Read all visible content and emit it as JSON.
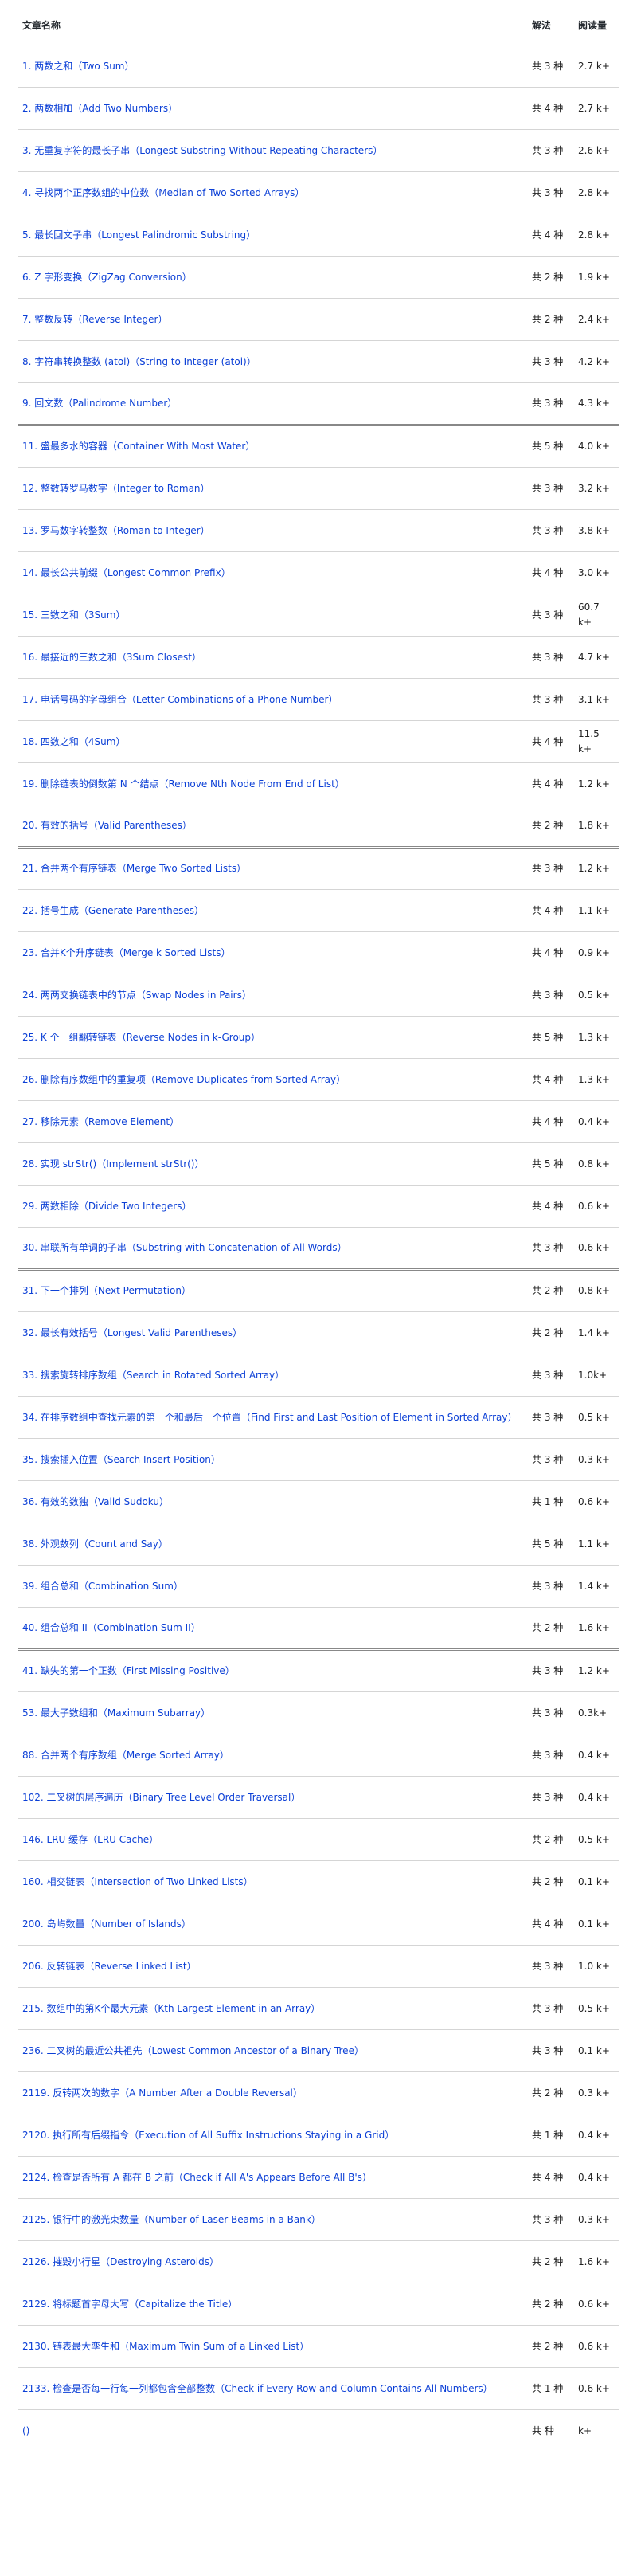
{
  "header": {
    "title": "文章名称",
    "solutions": "解法",
    "reads": "阅读量"
  },
  "rows": [
    {
      "title": "1. 两数之和（Two Sum）",
      "solutions": "共 3 种",
      "reads": "2.7 k+"
    },
    {
      "title": "2. 两数相加（Add Two Numbers）",
      "solutions": "共 4 种",
      "reads": "2.7 k+"
    },
    {
      "title": "3. 无重复字符的最长子串（Longest Substring Without Repeating Characters）",
      "solutions": "共 3 种",
      "reads": "2.6 k+"
    },
    {
      "title": "4. 寻找两个正序数组的中位数（Median of Two Sorted Arrays）",
      "solutions": "共 3 种",
      "reads": "2.8 k+"
    },
    {
      "title": "5. 最长回文子串（Longest Palindromic Substring）",
      "solutions": "共 4 种",
      "reads": "2.8 k+"
    },
    {
      "title": "6. Z 字形变换（ZigZag Conversion）",
      "solutions": "共 2 种",
      "reads": "1.9 k+"
    },
    {
      "title": "7. 整数反转（Reverse Integer）",
      "solutions": "共 2 种",
      "reads": "2.4 k+"
    },
    {
      "title": "8. 字符串转换整数 (atoi)（String to Integer (atoi)）",
      "solutions": "共 3 种",
      "reads": "4.2 k+"
    },
    {
      "title": "9. 回文数（Palindrome Number）",
      "solutions": "共 3 种",
      "reads": "4.3 k+"
    },
    {
      "title": "11. 盛最多水的容器（Container With Most Water）",
      "solutions": "共 5 种",
      "reads": "4.0 k+"
    },
    {
      "title": "12. 整数转罗马数字（Integer to Roman）",
      "solutions": "共 3 种",
      "reads": "3.2 k+"
    },
    {
      "title": "13. 罗马数字转整数（Roman to Integer）",
      "solutions": "共 3 种",
      "reads": "3.8 k+"
    },
    {
      "title": "14. 最长公共前缀（Longest Common Prefix）",
      "solutions": "共 4 种",
      "reads": "3.0 k+"
    },
    {
      "title": "15. 三数之和（3Sum）",
      "solutions": "共 3 种",
      "reads": "60.7 k+"
    },
    {
      "title": "16. 最接近的三数之和（3Sum Closest）",
      "solutions": "共 3 种",
      "reads": "4.7 k+"
    },
    {
      "title": "17. 电话号码的字母组合（Letter Combinations of a Phone Number）",
      "solutions": "共 3 种",
      "reads": "3.1 k+"
    },
    {
      "title": "18. 四数之和（4Sum）",
      "solutions": "共 4 种",
      "reads": "11.5 k+"
    },
    {
      "title": "19. 删除链表的倒数第 N 个结点（Remove Nth Node From End of List）",
      "solutions": "共 4 种",
      "reads": "1.2 k+"
    },
    {
      "title": "20. 有效的括号（Valid Parentheses）",
      "solutions": "共 2 种",
      "reads": "1.8 k+"
    },
    {
      "title": "21. 合并两个有序链表（Merge Two Sorted Lists）",
      "solutions": "共 3 种",
      "reads": "1.2 k+"
    },
    {
      "title": "22. 括号生成（Generate Parentheses）",
      "solutions": "共 4 种",
      "reads": "1.1 k+"
    },
    {
      "title": "23. 合并K个升序链表（Merge k Sorted Lists）",
      "solutions": "共 4 种",
      "reads": "0.9 k+"
    },
    {
      "title": "24. 两两交换链表中的节点（Swap Nodes in Pairs）",
      "solutions": "共 3 种",
      "reads": "0.5 k+"
    },
    {
      "title": "25. K 个一组翻转链表（Reverse Nodes in k-Group）",
      "solutions": "共 5 种",
      "reads": "1.3 k+"
    },
    {
      "title": "26. 删除有序数组中的重复项（Remove Duplicates from Sorted Array）",
      "solutions": "共 4 种",
      "reads": "1.3 k+"
    },
    {
      "title": "27. 移除元素（Remove Element）",
      "solutions": "共 4 种",
      "reads": "0.4 k+"
    },
    {
      "title": "28. 实现 strStr()（Implement strStr()）",
      "solutions": "共 5 种",
      "reads": "0.8 k+"
    },
    {
      "title": "29. 两数相除（Divide Two Integers）",
      "solutions": "共 4 种",
      "reads": "0.6 k+"
    },
    {
      "title": "30. 串联所有单词的子串（Substring with Concatenation of All Words）",
      "solutions": "共 3 种",
      "reads": "0.6 k+"
    },
    {
      "title": "31. 下一个排列（Next Permutation）",
      "solutions": "共 2 种",
      "reads": "0.8 k+"
    },
    {
      "title": "32. 最长有效括号（Longest Valid Parentheses）",
      "solutions": "共 2 种",
      "reads": "1.4 k+"
    },
    {
      "title": "33. 搜索旋转排序数组（Search in Rotated Sorted Array）",
      "solutions": "共 3 种",
      "reads": "1.0k+"
    },
    {
      "title": "34. 在排序数组中查找元素的第一个和最后一个位置（Find First and Last Position of Element in Sorted Array）",
      "solutions": "共 3 种",
      "reads": "0.5 k+"
    },
    {
      "title": "35. 搜索插入位置（Search Insert Position）",
      "solutions": "共 3 种",
      "reads": "0.3 k+"
    },
    {
      "title": "36. 有效的数独（Valid Sudoku）",
      "solutions": "共 1 种",
      "reads": "0.6 k+"
    },
    {
      "title": "38. 外观数列（Count and Say）",
      "solutions": "共 5 种",
      "reads": "1.1 k+"
    },
    {
      "title": "39. 组合总和（Combination Sum）",
      "solutions": "共 3 种",
      "reads": "1.4 k+"
    },
    {
      "title": "40. 组合总和 II（Combination Sum II）",
      "solutions": "共 2 种",
      "reads": "1.6 k+"
    },
    {
      "title": "41. 缺失的第一个正数（First Missing Positive）",
      "solutions": "共 3 种",
      "reads": "1.2 k+"
    },
    {
      "title": "53. 最大子数组和（Maximum Subarray）",
      "solutions": "共 3 种",
      "reads": "0.3k+"
    },
    {
      "title": "88. 合并两个有序数组（Merge Sorted Array）",
      "solutions": "共 3 种",
      "reads": "0.4 k+"
    },
    {
      "title": "102. 二叉树的层序遍历（Binary Tree Level Order Traversal）",
      "solutions": "共 3 种",
      "reads": "0.4 k+"
    },
    {
      "title": "146. LRU 缓存（LRU Cache）",
      "solutions": "共 2 种",
      "reads": "0.5 k+"
    },
    {
      "title": "160. 相交链表（Intersection of Two Linked Lists）",
      "solutions": "共 2 种",
      "reads": "0.1 k+"
    },
    {
      "title": "200. 岛屿数量（Number of Islands）",
      "solutions": "共 4 种",
      "reads": "0.1 k+"
    },
    {
      "title": "206. 反转链表（Reverse Linked List）",
      "solutions": "共 3 种",
      "reads": "1.0 k+"
    },
    {
      "title": "215. 数组中的第K个最大元素（Kth Largest Element in an Array）",
      "solutions": "共 3 种",
      "reads": "0.5 k+"
    },
    {
      "title": "236. 二叉树的最近公共祖先（Lowest Common Ancestor of a Binary Tree）",
      "solutions": "共 3 种",
      "reads": "0.1 k+"
    },
    {
      "title": "2119. 反转两次的数字（A Number After a Double Reversal）",
      "solutions": "共 2 种",
      "reads": "0.3 k+"
    },
    {
      "title": "2120. 执行所有后缀指令（Execution of All Suffix Instructions Staying in a Grid）",
      "solutions": "共 1 种",
      "reads": "0.4 k+"
    },
    {
      "title": "2124. 检查是否所有 A 都在 B 之前（Check if All A's Appears Before All B's）",
      "solutions": "共 4 种",
      "reads": "0.4 k+"
    },
    {
      "title": "2125. 银行中的激光束数量（Number of Laser Beams in a Bank）",
      "solutions": "共 3 种",
      "reads": "0.3 k+"
    },
    {
      "title": "2126. 摧毁小行星（Destroying Asteroids）",
      "solutions": "共 2 种",
      "reads": "1.6 k+"
    },
    {
      "title": "2129. 将标题首字母大写（Capitalize the Title）",
      "solutions": "共 2 种",
      "reads": "0.6 k+"
    },
    {
      "title": "2130. 链表最大孪生和（Maximum Twin Sum of a Linked List）",
      "solutions": "共 2 种",
      "reads": "0.6 k+"
    },
    {
      "title": "2133. 检查是否每一行每一列都包含全部整数（Check if Every Row and Column Contains All Numbers）",
      "solutions": "共 1 种",
      "reads": "0.6 k+"
    },
    {
      "title": "()",
      "solutions": "共 种",
      "reads": "k+"
    }
  ]
}
